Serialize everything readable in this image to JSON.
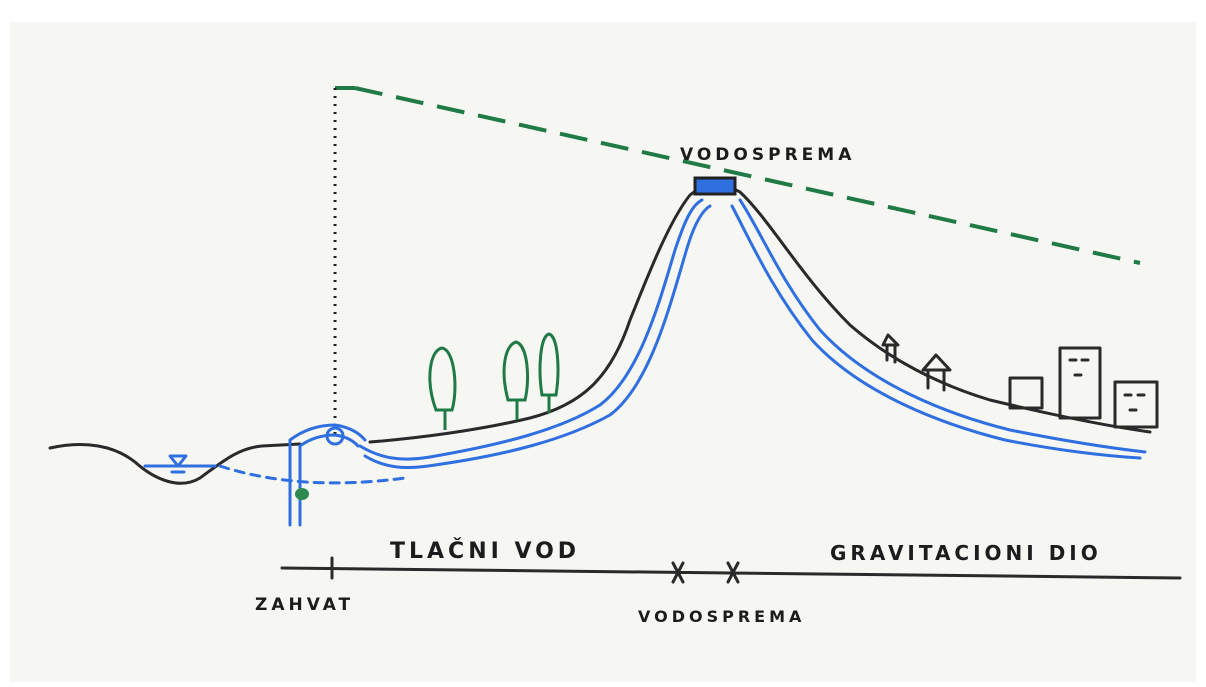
{
  "labels": [
    "VODOSPREMA",
    "TLAČNI VOD",
    "GRAVITACIONI DIO",
    "ZAHVAT",
    "VODOSPREMA"
  ]
}
